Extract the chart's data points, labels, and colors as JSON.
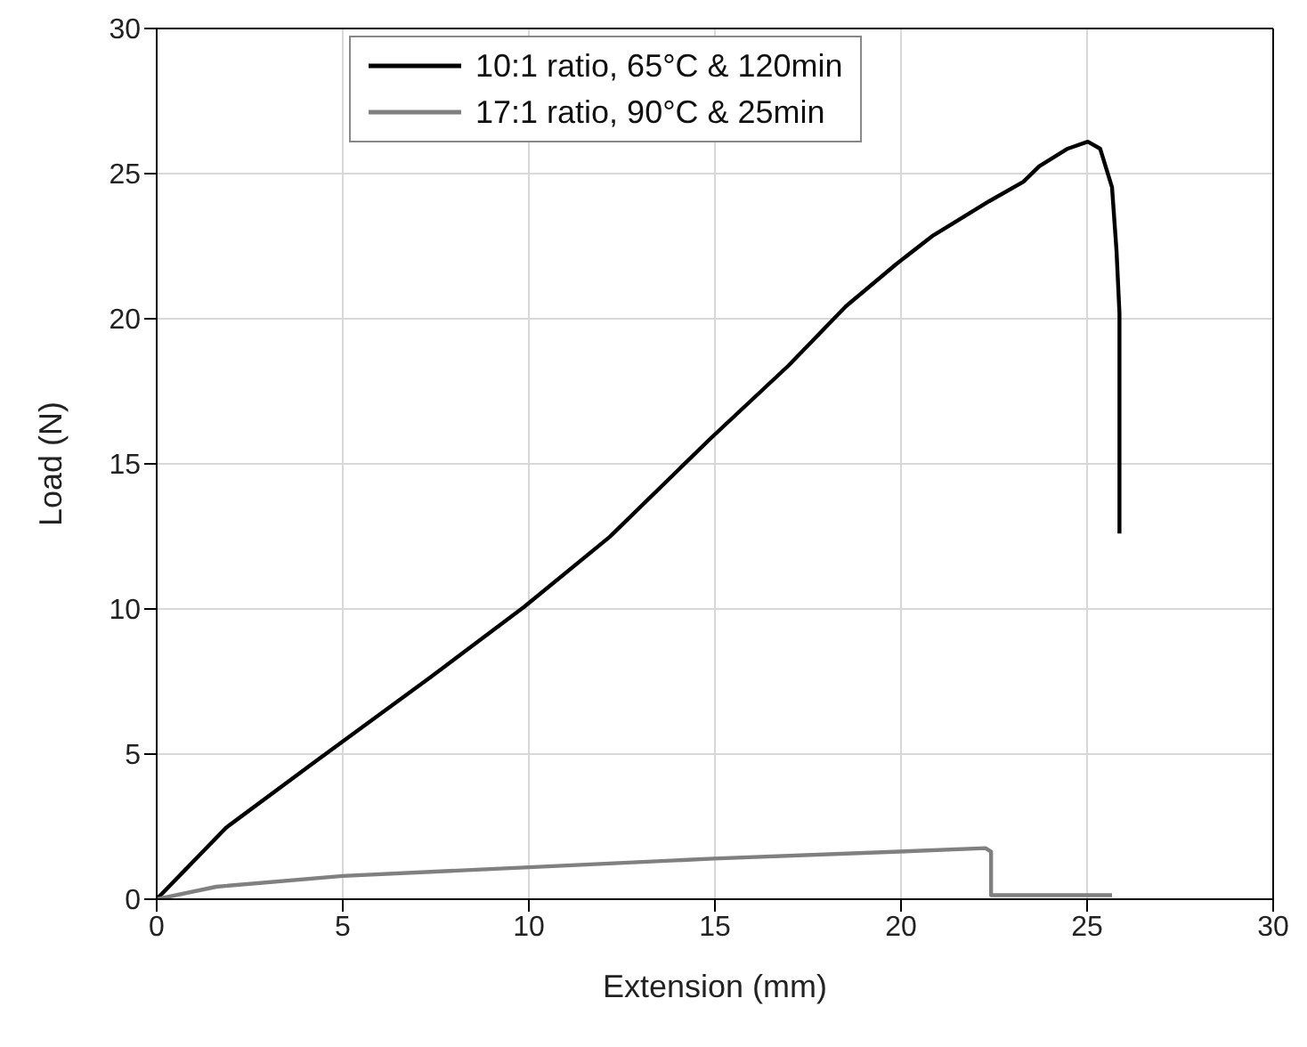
{
  "chart_data": {
    "type": "line",
    "xlabel": "Extension (mm)",
    "ylabel": "Load (N)",
    "xlim": [
      0,
      30
    ],
    "xticks": [
      0,
      5,
      10,
      15,
      20,
      25,
      30
    ],
    "ylim": [
      0,
      30
    ],
    "yticks": [
      0,
      5,
      10,
      15,
      20,
      25,
      30
    ],
    "grid": true,
    "legend": "top left",
    "series": [
      {
        "name": "10:1 ratio, 65°C & 120min",
        "color": "#000000",
        "x": [
          0,
          1.88,
          4.29,
          7.37,
          9.87,
          12.17,
          14.87,
          16.98,
          18.52,
          19.87,
          20.83,
          22.37,
          23.29,
          23.71,
          24.48,
          25.02,
          25.35,
          25.67,
          25.79,
          25.87,
          25.87
        ],
        "values": [
          0,
          2.48,
          4.77,
          7.66,
          10.07,
          12.48,
          15.86,
          18.39,
          20.43,
          21.88,
          22.84,
          24.05,
          24.72,
          25.25,
          25.86,
          26.1,
          25.86,
          24.53,
          22.36,
          20.19,
          12.6
        ]
      },
      {
        "name": "17:1 ratio, 90°C & 25min",
        "color": "#808080",
        "x": [
          0,
          1.6,
          5,
          10,
          14.96,
          19.96,
          22.27,
          22.42,
          22.42,
          25.67
        ],
        "values": [
          0,
          0.43,
          0.8,
          1.1,
          1.4,
          1.64,
          1.76,
          1.64,
          0.14,
          0.14
        ]
      }
    ]
  }
}
